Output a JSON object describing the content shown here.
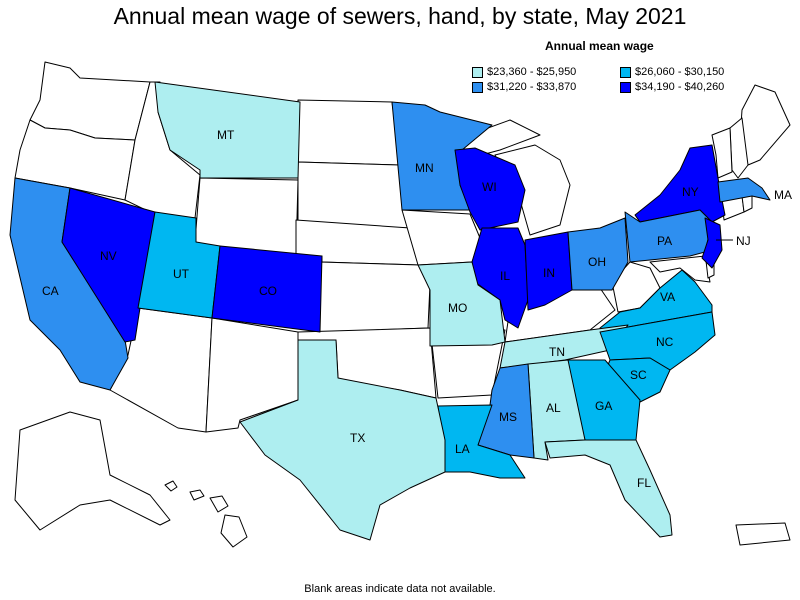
{
  "title": "Annual mean wage of sewers, hand, by state, May 2021",
  "legend": {
    "title": "Annual mean wage",
    "items": [
      {
        "label": "$23,360 - $25,950",
        "color": "#aeeef0"
      },
      {
        "label": "$26,060 - $30,150",
        "color": "#00b7f1"
      },
      {
        "label": "$31,220 - $33,870",
        "color": "#2e8ff0"
      },
      {
        "label": "$34,190 - $40,260",
        "color": "#0000ff"
      }
    ]
  },
  "colors": {
    "no_data": "#ffffff",
    "border": "#000000"
  },
  "states": [
    {
      "abbr": "MT",
      "tier": 0
    },
    {
      "abbr": "MN",
      "tier": 2
    },
    {
      "abbr": "WI",
      "tier": 3
    },
    {
      "abbr": "NY",
      "tier": 3
    },
    {
      "abbr": "MA",
      "tier": 2
    },
    {
      "abbr": "CA",
      "tier": 2
    },
    {
      "abbr": "NV",
      "tier": 3
    },
    {
      "abbr": "UT",
      "tier": 1
    },
    {
      "abbr": "CO",
      "tier": 3
    },
    {
      "abbr": "IL",
      "tier": 3
    },
    {
      "abbr": "IN",
      "tier": 3
    },
    {
      "abbr": "OH",
      "tier": 2
    },
    {
      "abbr": "PA",
      "tier": 2
    },
    {
      "abbr": "NJ",
      "tier": 3
    },
    {
      "abbr": "MO",
      "tier": 0
    },
    {
      "abbr": "VA",
      "tier": 1
    },
    {
      "abbr": "TN",
      "tier": 0
    },
    {
      "abbr": "NC",
      "tier": 1
    },
    {
      "abbr": "SC",
      "tier": 1
    },
    {
      "abbr": "GA",
      "tier": 1
    },
    {
      "abbr": "AL",
      "tier": 0
    },
    {
      "abbr": "MS",
      "tier": 2
    },
    {
      "abbr": "LA",
      "tier": 1
    },
    {
      "abbr": "TX",
      "tier": 0
    },
    {
      "abbr": "FL",
      "tier": 0
    }
  ],
  "footnote": "Blank areas indicate data not available."
}
